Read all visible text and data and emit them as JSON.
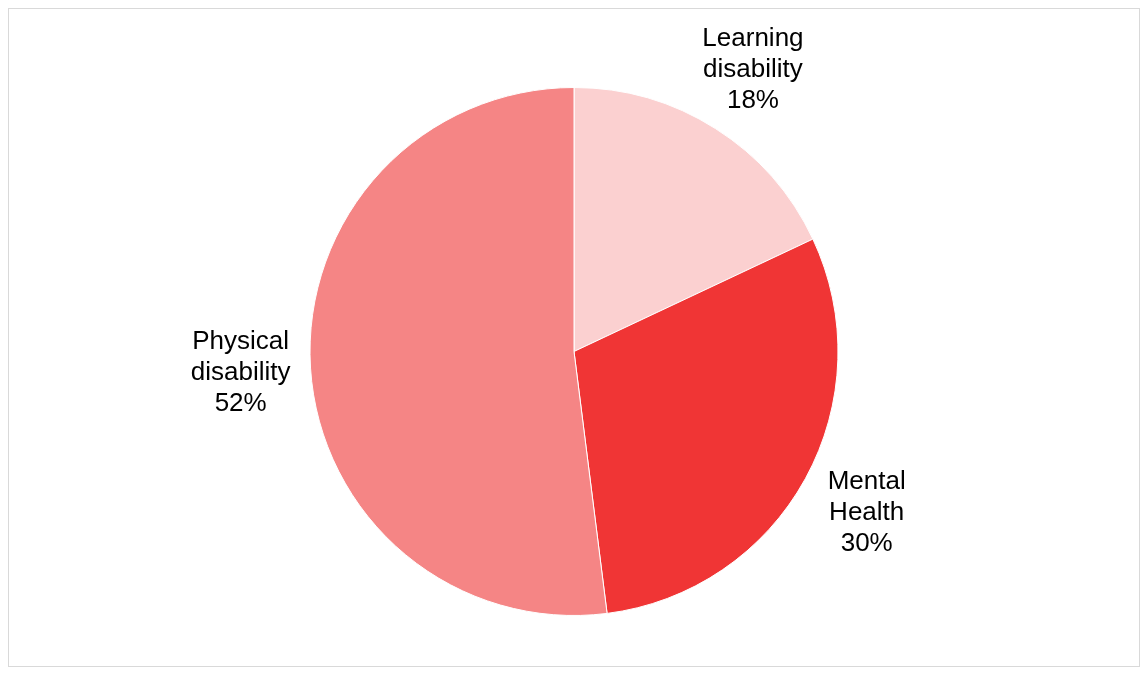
{
  "chart_data": {
    "type": "pie",
    "categories": [
      "Learning disability",
      "Mental Health",
      "Physical disability"
    ],
    "values": [
      18,
      30,
      52
    ],
    "colors": [
      "#fbd0d0",
      "#f03535",
      "#f58585"
    ],
    "value_labels": [
      "18%",
      "30%",
      "52%"
    ],
    "legend": false
  }
}
